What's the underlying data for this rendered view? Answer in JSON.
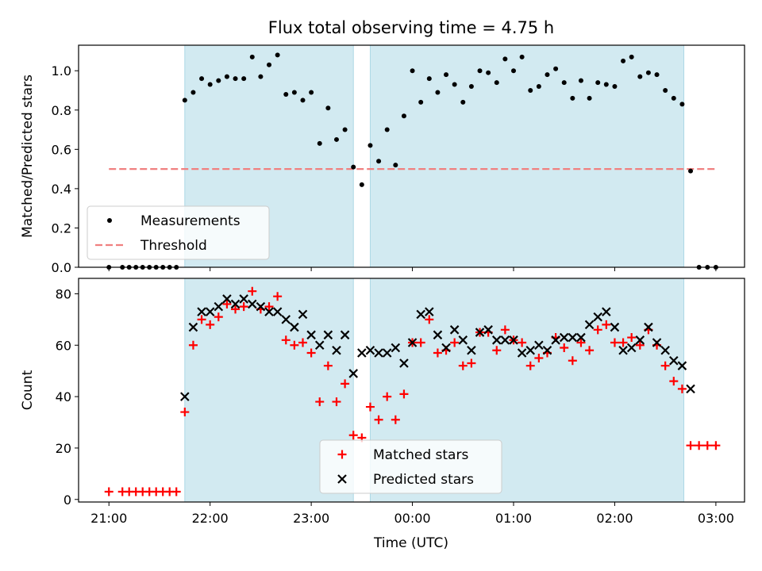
{
  "figure": {
    "title": "Flux total observing time = 4.75 h",
    "xlabel": "Time (UTC)",
    "x_tick_labels": [
      "21:00",
      "22:00",
      "23:00",
      "00:00",
      "01:00",
      "02:00",
      "03:00"
    ]
  },
  "colors": {
    "shade": "#add8e6",
    "measurement": "#000000",
    "threshold": "#f08080",
    "matched": "#ff0000",
    "predicted": "#000000"
  },
  "chart_data": [
    {
      "type": "scatter",
      "ylabel": "Matched/Predicted stars",
      "ylim": [
        0,
        1.13
      ],
      "xlim": [
        "20:42",
        "03:17"
      ],
      "x_unit": "hours after 21:00 UTC",
      "grid": false,
      "legend_position": "lower-left",
      "legend": [
        "Measurements",
        "Threshold"
      ],
      "y_tick_labels": [
        "0.0",
        "0.2",
        "0.4",
        "0.6",
        "0.8",
        "1.0"
      ],
      "shaded_intervals": [
        [
          "21:45",
          "23:25"
        ],
        [
          "23:35",
          "02:41"
        ]
      ],
      "threshold": {
        "name": "Threshold",
        "value": 0.5,
        "x_range": [
          "21:00",
          "03:00"
        ]
      },
      "series": [
        {
          "name": "Measurements",
          "points": [
            [
              "21:00",
              0.0
            ],
            [
              "21:08",
              0.0
            ],
            [
              "21:12",
              0.0
            ],
            [
              "21:16",
              0.0
            ],
            [
              "21:20",
              0.0
            ],
            [
              "21:24",
              0.0
            ],
            [
              "21:28",
              0.0
            ],
            [
              "21:32",
              0.0
            ],
            [
              "21:36",
              0.0
            ],
            [
              "21:40",
              0.0
            ],
            [
              "21:45",
              0.85
            ],
            [
              "21:50",
              0.89
            ],
            [
              "21:55",
              0.96
            ],
            [
              "22:00",
              0.93
            ],
            [
              "22:05",
              0.95
            ],
            [
              "22:10",
              0.97
            ],
            [
              "22:15",
              0.96
            ],
            [
              "22:20",
              0.96
            ],
            [
              "22:25",
              1.07
            ],
            [
              "22:30",
              0.97
            ],
            [
              "22:35",
              1.03
            ],
            [
              "22:40",
              1.08
            ],
            [
              "22:45",
              0.88
            ],
            [
              "22:50",
              0.89
            ],
            [
              "22:55",
              0.85
            ],
            [
              "23:00",
              0.89
            ],
            [
              "23:05",
              0.63
            ],
            [
              "23:10",
              0.81
            ],
            [
              "23:15",
              0.65
            ],
            [
              "23:20",
              0.7
            ],
            [
              "23:25",
              0.51
            ],
            [
              "23:30",
              0.42
            ],
            [
              "23:35",
              0.62
            ],
            [
              "23:40",
              0.54
            ],
            [
              "23:45",
              0.7
            ],
            [
              "23:50",
              0.52
            ],
            [
              "23:55",
              0.77
            ],
            [
              "00:00",
              1.0
            ],
            [
              "00:05",
              0.84
            ],
            [
              "00:10",
              0.96
            ],
            [
              "00:15",
              0.89
            ],
            [
              "00:20",
              0.98
            ],
            [
              "00:25",
              0.93
            ],
            [
              "00:30",
              0.84
            ],
            [
              "00:35",
              0.92
            ],
            [
              "00:40",
              1.0
            ],
            [
              "00:45",
              0.99
            ],
            [
              "00:50",
              0.94
            ],
            [
              "00:55",
              1.06
            ],
            [
              "01:00",
              1.0
            ],
            [
              "01:05",
              1.07
            ],
            [
              "01:10",
              0.9
            ],
            [
              "01:15",
              0.92
            ],
            [
              "01:20",
              0.98
            ],
            [
              "01:25",
              1.01
            ],
            [
              "01:30",
              0.94
            ],
            [
              "01:35",
              0.86
            ],
            [
              "01:40",
              0.95
            ],
            [
              "01:45",
              0.86
            ],
            [
              "01:50",
              0.94
            ],
            [
              "01:55",
              0.93
            ],
            [
              "02:00",
              0.92
            ],
            [
              "02:05",
              1.05
            ],
            [
              "02:10",
              1.07
            ],
            [
              "02:15",
              0.97
            ],
            [
              "02:20",
              0.99
            ],
            [
              "02:25",
              0.98
            ],
            [
              "02:30",
              0.9
            ],
            [
              "02:35",
              0.86
            ],
            [
              "02:40",
              0.83
            ],
            [
              "02:45",
              0.49
            ],
            [
              "02:50",
              0.0
            ],
            [
              "02:55",
              0.0
            ],
            [
              "03:00",
              0.0
            ]
          ]
        }
      ]
    },
    {
      "type": "scatter",
      "ylabel": "Count",
      "ylim": [
        -1,
        86
      ],
      "xlim": [
        "20:42",
        "03:17"
      ],
      "x_unit": "hours after 21:00 UTC",
      "grid": false,
      "legend_position": "lower-center",
      "legend": [
        "Matched stars",
        "Predicted stars"
      ],
      "y_tick_labels": [
        "0",
        "20",
        "40",
        "60",
        "80"
      ],
      "shaded_intervals": [
        [
          "21:45",
          "23:25"
        ],
        [
          "23:35",
          "02:41"
        ]
      ],
      "series": [
        {
          "name": "Matched stars",
          "points": [
            [
              "21:00",
              3
            ],
            [
              "21:08",
              3
            ],
            [
              "21:12",
              3
            ],
            [
              "21:16",
              3
            ],
            [
              "21:20",
              3
            ],
            [
              "21:24",
              3
            ],
            [
              "21:28",
              3
            ],
            [
              "21:32",
              3
            ],
            [
              "21:36",
              3
            ],
            [
              "21:40",
              3
            ],
            [
              "21:45",
              34
            ],
            [
              "21:50",
              60
            ],
            [
              "21:55",
              70
            ],
            [
              "22:00",
              68
            ],
            [
              "22:05",
              71
            ],
            [
              "22:10",
              76
            ],
            [
              "22:15",
              74
            ],
            [
              "22:20",
              75
            ],
            [
              "22:25",
              81
            ],
            [
              "22:30",
              74
            ],
            [
              "22:35",
              75
            ],
            [
              "22:40",
              79
            ],
            [
              "22:45",
              62
            ],
            [
              "22:50",
              60
            ],
            [
              "22:55",
              61
            ],
            [
              "23:00",
              57
            ],
            [
              "23:05",
              38
            ],
            [
              "23:10",
              52
            ],
            [
              "23:15",
              38
            ],
            [
              "23:20",
              45
            ],
            [
              "23:25",
              25
            ],
            [
              "23:30",
              24
            ],
            [
              "23:35",
              36
            ],
            [
              "23:40",
              31
            ],
            [
              "23:45",
              40
            ],
            [
              "23:50",
              31
            ],
            [
              "23:55",
              41
            ],
            [
              "00:00",
              61
            ],
            [
              "00:05",
              61
            ],
            [
              "00:10",
              70
            ],
            [
              "00:15",
              57
            ],
            [
              "00:20",
              58
            ],
            [
              "00:25",
              61
            ],
            [
              "00:30",
              52
            ],
            [
              "00:35",
              53
            ],
            [
              "00:40",
              65
            ],
            [
              "00:45",
              65
            ],
            [
              "00:50",
              58
            ],
            [
              "00:55",
              66
            ],
            [
              "01:00",
              62
            ],
            [
              "01:05",
              61
            ],
            [
              "01:10",
              52
            ],
            [
              "01:15",
              55
            ],
            [
              "01:20",
              57
            ],
            [
              "01:25",
              63
            ],
            [
              "01:30",
              59
            ],
            [
              "01:35",
              54
            ],
            [
              "01:40",
              61
            ],
            [
              "01:45",
              58
            ],
            [
              "01:50",
              66
            ],
            [
              "01:55",
              68
            ],
            [
              "02:00",
              61
            ],
            [
              "02:05",
              61
            ],
            [
              "02:10",
              63
            ],
            [
              "02:15",
              60
            ],
            [
              "02:20",
              66
            ],
            [
              "02:25",
              60
            ],
            [
              "02:30",
              52
            ],
            [
              "02:35",
              46
            ],
            [
              "02:40",
              43
            ],
            [
              "02:45",
              21
            ],
            [
              "02:50",
              21
            ],
            [
              "02:55",
              21
            ],
            [
              "03:00",
              21
            ]
          ]
        },
        {
          "name": "Predicted stars",
          "points": [
            [
              "21:45",
              40
            ],
            [
              "21:50",
              67
            ],
            [
              "21:55",
              73
            ],
            [
              "22:00",
              73
            ],
            [
              "22:05",
              75
            ],
            [
              "22:10",
              78
            ],
            [
              "22:15",
              76
            ],
            [
              "22:20",
              78
            ],
            [
              "22:25",
              76
            ],
            [
              "22:30",
              75
            ],
            [
              "22:35",
              73
            ],
            [
              "22:40",
              73
            ],
            [
              "22:45",
              70
            ],
            [
              "22:50",
              67
            ],
            [
              "22:55",
              72
            ],
            [
              "23:00",
              64
            ],
            [
              "23:05",
              60
            ],
            [
              "23:10",
              64
            ],
            [
              "23:15",
              58
            ],
            [
              "23:20",
              64
            ],
            [
              "23:25",
              49
            ],
            [
              "23:30",
              57
            ],
            [
              "23:35",
              58
            ],
            [
              "23:40",
              57
            ],
            [
              "23:45",
              57
            ],
            [
              "23:50",
              59
            ],
            [
              "23:55",
              53
            ],
            [
              "00:00",
              61
            ],
            [
              "00:05",
              72
            ],
            [
              "00:10",
              73
            ],
            [
              "00:15",
              64
            ],
            [
              "00:20",
              59
            ],
            [
              "00:25",
              66
            ],
            [
              "00:30",
              62
            ],
            [
              "00:35",
              58
            ],
            [
              "00:40",
              65
            ],
            [
              "00:45",
              66
            ],
            [
              "00:50",
              62
            ],
            [
              "00:55",
              62
            ],
            [
              "01:00",
              62
            ],
            [
              "01:05",
              57
            ],
            [
              "01:10",
              58
            ],
            [
              "01:15",
              60
            ],
            [
              "01:20",
              58
            ],
            [
              "01:25",
              62
            ],
            [
              "01:30",
              63
            ],
            [
              "01:35",
              63
            ],
            [
              "01:40",
              63
            ],
            [
              "01:45",
              68
            ],
            [
              "01:50",
              71
            ],
            [
              "01:55",
              73
            ],
            [
              "02:00",
              67
            ],
            [
              "02:05",
              58
            ],
            [
              "02:10",
              59
            ],
            [
              "02:15",
              62
            ],
            [
              "02:20",
              67
            ],
            [
              "02:25",
              61
            ],
            [
              "02:30",
              58
            ],
            [
              "02:35",
              54
            ],
            [
              "02:40",
              52
            ],
            [
              "02:45",
              43
            ]
          ]
        }
      ]
    }
  ]
}
